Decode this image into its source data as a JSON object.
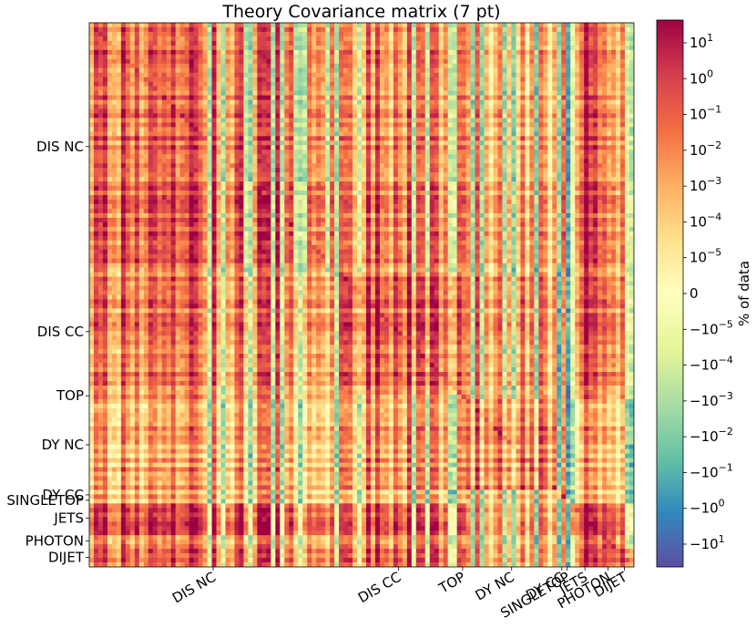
{
  "chart_data": {
    "type": "heatmap",
    "title": "Theory Covariance matrix (7 pt)",
    "colorbar_label": "% of data",
    "colorbar_ticks": [
      {
        "base": "10",
        "exp": "1"
      },
      {
        "base": "10",
        "exp": "0"
      },
      {
        "base": "10",
        "exp": "−1"
      },
      {
        "base": "10",
        "exp": "−2"
      },
      {
        "base": "10",
        "exp": "−3"
      },
      {
        "base": "10",
        "exp": "−4"
      },
      {
        "base": "10",
        "exp": "−5"
      },
      {
        "base": "0",
        "exp": ""
      },
      {
        "base": "−10",
        "exp": "−5"
      },
      {
        "base": "−10",
        "exp": "−4"
      },
      {
        "base": "−10",
        "exp": "−3"
      },
      {
        "base": "−10",
        "exp": "−2"
      },
      {
        "base": "−10",
        "exp": "−1"
      },
      {
        "base": "−10",
        "exp": "0"
      },
      {
        "base": "−10",
        "exp": "1"
      }
    ],
    "colorscale": "Spectral (reversed)",
    "color_stops": [
      "#5e4fa2",
      "#3288bd",
      "#66c2a5",
      "#abdda4",
      "#e6f598",
      "#ffffbf",
      "#fee08b",
      "#fdae61",
      "#f46d43",
      "#d53e4f",
      "#9e0142"
    ],
    "datasets": [
      {
        "name": "DIS NC",
        "start": 0.0,
        "end": 0.455
      },
      {
        "name": "DIS CC",
        "start": 0.455,
        "end": 0.68
      },
      {
        "name": "TOP",
        "start": 0.68,
        "end": 0.691
      },
      {
        "name": "DY NC",
        "start": 0.691,
        "end": 0.86
      },
      {
        "name": "DY CC",
        "start": 0.86,
        "end": 0.875
      },
      {
        "name": "SINGLETOP",
        "start": 0.875,
        "end": 0.88
      },
      {
        "name": "JETS",
        "start": 0.88,
        "end": 0.94
      },
      {
        "name": "PHOTON",
        "start": 0.94,
        "end": 0.965
      },
      {
        "name": "DIJET",
        "start": 0.965,
        "end": 1.0
      }
    ],
    "x_tick_labels": [
      "DIS NC",
      "DIS CC",
      "TOP",
      "DY NC",
      "DY CC",
      "SINGLETOP",
      "JETS",
      "PHOTON",
      "DIJET"
    ],
    "y_tick_labels": [
      "DIS NC",
      "DIS CC",
      "TOP",
      "DY NC",
      "DY CC",
      "SINGLETOP",
      "JETS",
      "PHOTON",
      "DIJET"
    ]
  }
}
